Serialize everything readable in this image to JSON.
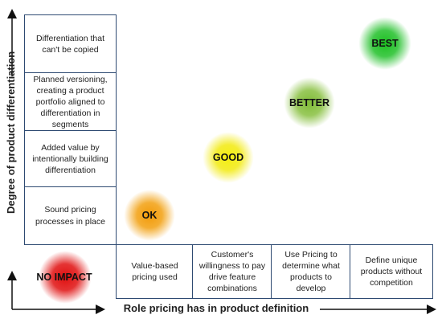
{
  "y_axis": {
    "label": "Degree of product differentiation",
    "levels": [
      "Differentiation that can't be copied",
      "Planned versioning, creating a product portfolio aligned to differentiation  in segments",
      "Added value by intentionally building differentiation",
      "Sound pricing processes in place"
    ]
  },
  "x_axis": {
    "label": "Role pricing has in product definition",
    "levels": [
      "Value-based pricing used",
      "Customer's willingness to pay drive feature combinations",
      "Use Pricing to determine what products to develop",
      "Define unique products without competition"
    ]
  },
  "stages": [
    {
      "label": "NO IMPACT",
      "color": "#e01010"
    },
    {
      "label": "OK",
      "color": "#f0a010"
    },
    {
      "label": "GOOD",
      "color": "#f2ea10"
    },
    {
      "label": "BETTER",
      "color": "#88c040"
    },
    {
      "label": "BEST",
      "color": "#22c02a"
    }
  ],
  "colors": {
    "border": "#2e4a72",
    "arrow": "#111111"
  }
}
